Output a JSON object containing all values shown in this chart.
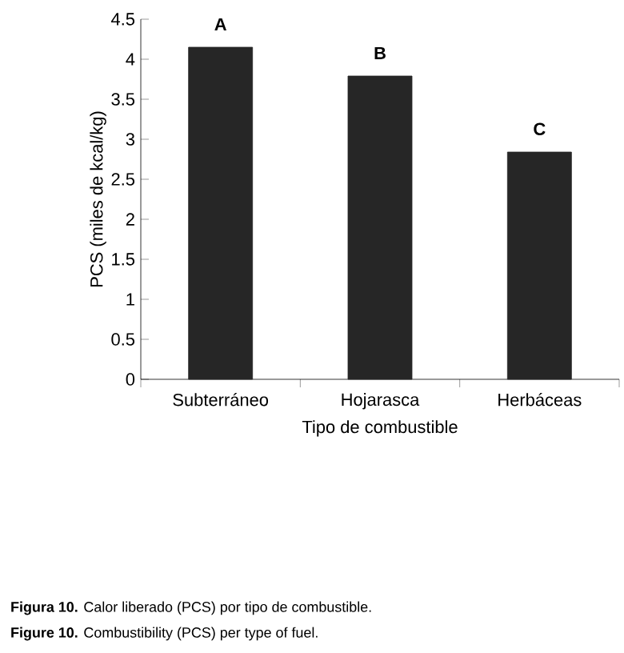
{
  "chart_data": {
    "type": "bar",
    "xlabel": "Tipo de combustible",
    "ylabel": "PCS (miles de kcal/kg)",
    "categories": [
      "Subterráneo",
      "Hojarasca",
      "Herbáceas"
    ],
    "values": [
      4.15,
      3.79,
      2.84
    ],
    "color": "#262626",
    "ylim": [
      0,
      4.5
    ],
    "yticks": [
      0,
      0.5,
      1,
      1.5,
      2,
      2.5,
      3,
      3.5,
      4,
      4.5
    ],
    "annotations": [
      "A",
      "B",
      "C",
      "**Figura 10.** Calor liberado (PCS) por tipo de combustible.",
      "**Figure 10.** Combustibility (PCS) per type of fuel."
    ]
  }
}
